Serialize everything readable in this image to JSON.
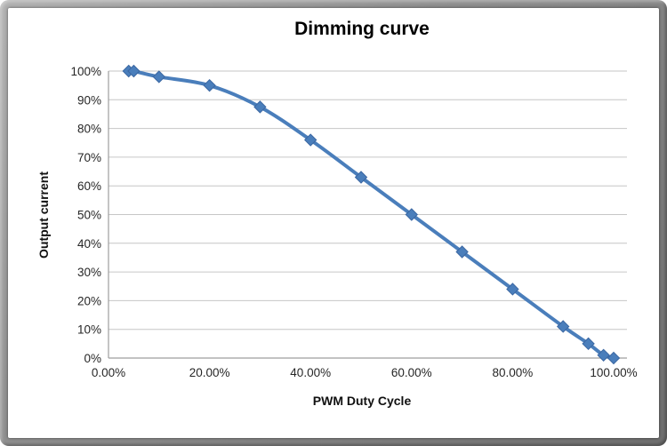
{
  "chart_data": {
    "type": "line",
    "title": "Dimming curve",
    "xlabel": "PWM Duty Cycle",
    "ylabel": "Output current",
    "series_count": 1,
    "x": [
      4,
      5,
      10,
      20,
      30,
      40,
      50,
      60,
      70,
      80,
      90,
      95,
      98,
      100
    ],
    "y": [
      100,
      100,
      98,
      95,
      87.5,
      76,
      63,
      50,
      37,
      24,
      11,
      5,
      1,
      0
    ],
    "xlim": [
      0,
      100
    ],
    "ylim": [
      0,
      100
    ],
    "x_ticks": [
      {
        "label": "0.00%",
        "value": 0
      },
      {
        "label": "20.00%",
        "value": 20
      },
      {
        "label": "40.00%",
        "value": 40
      },
      {
        "label": "60.00%",
        "value": 60
      },
      {
        "label": "80.00%",
        "value": 80
      },
      {
        "label": "100.00%",
        "value": 100
      }
    ],
    "y_ticks": [
      {
        "label": "0%",
        "value": 0
      },
      {
        "label": "10%",
        "value": 10
      },
      {
        "label": "20%",
        "value": 20
      },
      {
        "label": "30%",
        "value": 30
      },
      {
        "label": "40%",
        "value": 40
      },
      {
        "label": "50%",
        "value": 50
      },
      {
        "label": "60%",
        "value": 60
      },
      {
        "label": "70%",
        "value": 70
      },
      {
        "label": "80%",
        "value": 80
      },
      {
        "label": "90%",
        "value": 90
      },
      {
        "label": "100%",
        "value": 100
      }
    ],
    "grid": true,
    "legend": "none",
    "marker": "diamond",
    "smooth": true,
    "colors": {
      "line": "#4A7EBB",
      "marker_fill": "#4A7EBB",
      "marker_stroke": "#3B67A2",
      "grid": "#C6C6C6",
      "axis": "#9E9E9E",
      "tick_text": "#262626",
      "title_text": "#000000",
      "frame": "#8F8F8F",
      "background": "#FFFFFF"
    }
  }
}
